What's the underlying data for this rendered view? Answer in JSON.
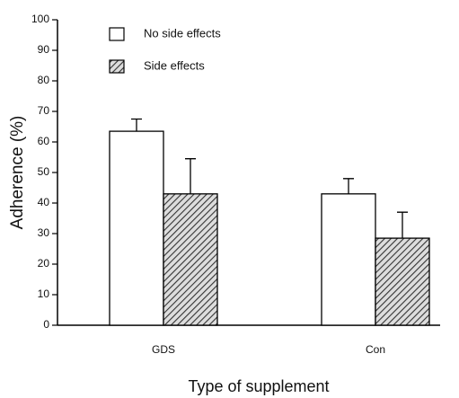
{
  "chart_data": {
    "type": "bar",
    "categories": [
      "GDS",
      "Con"
    ],
    "series": [
      {
        "name": "No side effects",
        "color": "#ffffff",
        "values": [
          63.5,
          43
        ],
        "errors": [
          4,
          5
        ]
      },
      {
        "name": "Side effects",
        "color": "#555555",
        "hatch": true,
        "values": [
          43,
          28.5
        ],
        "errors": [
          11.5,
          8.5
        ]
      }
    ],
    "ylim": [
      0,
      100
    ],
    "yticks": [
      0,
      10,
      20,
      30,
      40,
      50,
      60,
      70,
      80,
      90,
      100
    ],
    "y_label": "Adherence (%)",
    "x_label": "Type of supplement",
    "legend": "top-left"
  }
}
